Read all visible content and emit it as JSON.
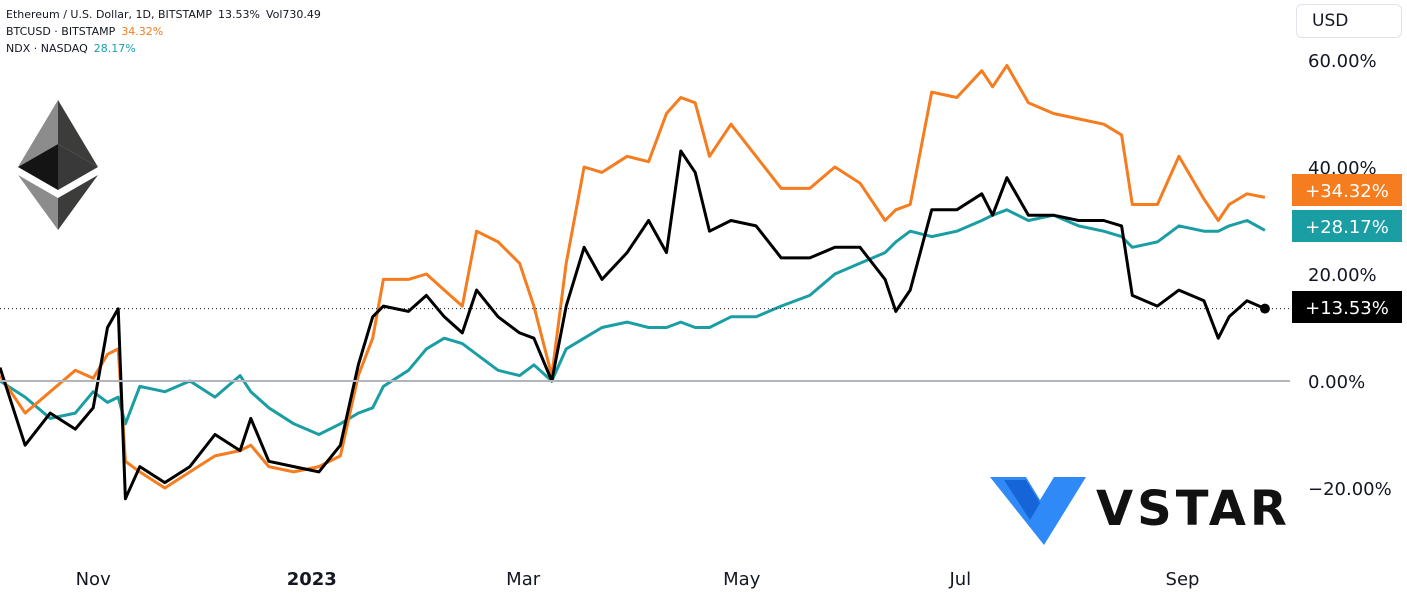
{
  "legend": {
    "eth": {
      "label": "Ethereum / U.S. Dollar, 1D, BITSTAMP",
      "value": "13.53%",
      "volume": "Vol730.49"
    },
    "btc": {
      "label": "BTCUSD · BITSTAMP",
      "value": "34.32%"
    },
    "ndx": {
      "label": "NDX · NASDAQ",
      "value": "28.17%"
    }
  },
  "currency_button": "USD",
  "brand": {
    "name": "VSTAR"
  },
  "colors": {
    "eth": "#000000",
    "btc": "#f57c1f",
    "ndx": "#1a9ea4",
    "zero_line": "#b2b5be"
  },
  "chart_data": {
    "type": "line",
    "xlabel": "",
    "ylabel": "",
    "ylim": [
      -22,
      62
    ],
    "yticks": [
      {
        "value": 60,
        "label": "60.00%"
      },
      {
        "value": 40,
        "label": "40.00%"
      },
      {
        "value": 20,
        "label": "20.00%"
      },
      {
        "value": 0,
        "label": "0.00%"
      },
      {
        "value": -20,
        "label": "−20.00%"
      }
    ],
    "xticks": [
      {
        "date": "2022-11-01",
        "label": "Nov",
        "bold": false
      },
      {
        "date": "2023-01-01",
        "label": "2023",
        "bold": true
      },
      {
        "date": "2023-03-01",
        "label": "Mar",
        "bold": false
      },
      {
        "date": "2023-05-01",
        "label": "May",
        "bold": false
      },
      {
        "date": "2023-07-01",
        "label": "Jul",
        "bold": false
      },
      {
        "date": "2023-09-01",
        "label": "Sep",
        "bold": false
      }
    ],
    "x_range": [
      "2022-10-06",
      "2023-10-01"
    ],
    "last_value_labels": [
      {
        "series": "BTCUSD",
        "label": "+34.32%"
      },
      {
        "series": "NDX",
        "label": "+28.17%"
      },
      {
        "series": "ETHUSD",
        "label": "+13.53%"
      }
    ],
    "series": [
      {
        "name": "ETHUSD",
        "color": "#000000",
        "points": [
          [
            "2022-10-06",
            2.5
          ],
          [
            "2022-10-13",
            -12
          ],
          [
            "2022-10-20",
            -6
          ],
          [
            "2022-10-27",
            -9
          ],
          [
            "2022-11-01",
            -5
          ],
          [
            "2022-11-05",
            10
          ],
          [
            "2022-11-08",
            13.5
          ],
          [
            "2022-11-10",
            -22
          ],
          [
            "2022-11-14",
            -16
          ],
          [
            "2022-11-21",
            -19
          ],
          [
            "2022-11-28",
            -16
          ],
          [
            "2022-12-05",
            -10
          ],
          [
            "2022-12-12",
            -13
          ],
          [
            "2022-12-15",
            -7
          ],
          [
            "2022-12-20",
            -15
          ],
          [
            "2022-12-27",
            -16
          ],
          [
            "2023-01-03",
            -17
          ],
          [
            "2023-01-09",
            -12
          ],
          [
            "2023-01-14",
            3
          ],
          [
            "2023-01-18",
            12
          ],
          [
            "2023-01-21",
            14
          ],
          [
            "2023-01-28",
            13
          ],
          [
            "2023-02-02",
            16
          ],
          [
            "2023-02-07",
            12
          ],
          [
            "2023-02-12",
            9
          ],
          [
            "2023-02-16",
            17
          ],
          [
            "2023-02-22",
            12
          ],
          [
            "2023-02-28",
            9
          ],
          [
            "2023-03-04",
            8
          ],
          [
            "2023-03-09",
            0
          ],
          [
            "2023-03-13",
            14
          ],
          [
            "2023-03-18",
            25
          ],
          [
            "2023-03-23",
            19
          ],
          [
            "2023-03-30",
            24
          ],
          [
            "2023-04-05",
            30
          ],
          [
            "2023-04-10",
            24
          ],
          [
            "2023-04-14",
            43
          ],
          [
            "2023-04-18",
            39
          ],
          [
            "2023-04-22",
            28
          ],
          [
            "2023-04-28",
            30
          ],
          [
            "2023-05-05",
            29
          ],
          [
            "2023-05-12",
            23
          ],
          [
            "2023-05-20",
            23
          ],
          [
            "2023-05-27",
            25
          ],
          [
            "2023-06-03",
            25
          ],
          [
            "2023-06-10",
            19
          ],
          [
            "2023-06-13",
            13
          ],
          [
            "2023-06-17",
            17
          ],
          [
            "2023-06-23",
            32
          ],
          [
            "2023-06-30",
            32
          ],
          [
            "2023-07-07",
            35
          ],
          [
            "2023-07-10",
            31
          ],
          [
            "2023-07-14",
            38
          ],
          [
            "2023-07-20",
            31
          ],
          [
            "2023-07-27",
            31
          ],
          [
            "2023-08-03",
            30
          ],
          [
            "2023-08-10",
            30
          ],
          [
            "2023-08-15",
            29
          ],
          [
            "2023-08-18",
            16
          ],
          [
            "2023-08-25",
            14
          ],
          [
            "2023-08-31",
            17
          ],
          [
            "2023-09-07",
            15
          ],
          [
            "2023-09-11",
            8
          ],
          [
            "2023-09-14",
            12
          ],
          [
            "2023-09-19",
            15
          ],
          [
            "2023-09-24",
            13.53
          ]
        ]
      },
      {
        "name": "BTCUSD",
        "color": "#f57c1f",
        "points": [
          [
            "2022-10-06",
            1
          ],
          [
            "2022-10-13",
            -6
          ],
          [
            "2022-10-20",
            -2
          ],
          [
            "2022-10-27",
            2
          ],
          [
            "2022-11-01",
            0.5
          ],
          [
            "2022-11-05",
            5
          ],
          [
            "2022-11-08",
            6
          ],
          [
            "2022-11-10",
            -15
          ],
          [
            "2022-11-14",
            -17
          ],
          [
            "2022-11-21",
            -20
          ],
          [
            "2022-11-28",
            -17
          ],
          [
            "2022-12-05",
            -14
          ],
          [
            "2022-12-12",
            -13
          ],
          [
            "2022-12-15",
            -12
          ],
          [
            "2022-12-20",
            -16
          ],
          [
            "2022-12-27",
            -17
          ],
          [
            "2023-01-03",
            -16
          ],
          [
            "2023-01-09",
            -14
          ],
          [
            "2023-01-14",
            1
          ],
          [
            "2023-01-18",
            8
          ],
          [
            "2023-01-21",
            19
          ],
          [
            "2023-01-28",
            19
          ],
          [
            "2023-02-02",
            20
          ],
          [
            "2023-02-07",
            17
          ],
          [
            "2023-02-12",
            14
          ],
          [
            "2023-02-16",
            28
          ],
          [
            "2023-02-22",
            26
          ],
          [
            "2023-02-28",
            22
          ],
          [
            "2023-03-04",
            14
          ],
          [
            "2023-03-09",
            1
          ],
          [
            "2023-03-13",
            22
          ],
          [
            "2023-03-18",
            40
          ],
          [
            "2023-03-23",
            39
          ],
          [
            "2023-03-30",
            42
          ],
          [
            "2023-04-05",
            41
          ],
          [
            "2023-04-10",
            50
          ],
          [
            "2023-04-14",
            53
          ],
          [
            "2023-04-18",
            52
          ],
          [
            "2023-04-22",
            42
          ],
          [
            "2023-04-28",
            48
          ],
          [
            "2023-05-05",
            42
          ],
          [
            "2023-05-12",
            36
          ],
          [
            "2023-05-20",
            36
          ],
          [
            "2023-05-27",
            40
          ],
          [
            "2023-06-03",
            37
          ],
          [
            "2023-06-10",
            30
          ],
          [
            "2023-06-13",
            32
          ],
          [
            "2023-06-17",
            33
          ],
          [
            "2023-06-23",
            54
          ],
          [
            "2023-06-30",
            53
          ],
          [
            "2023-07-07",
            58
          ],
          [
            "2023-07-10",
            55
          ],
          [
            "2023-07-14",
            59
          ],
          [
            "2023-07-20",
            52
          ],
          [
            "2023-07-27",
            50
          ],
          [
            "2023-08-03",
            49
          ],
          [
            "2023-08-10",
            48
          ],
          [
            "2023-08-15",
            46
          ],
          [
            "2023-08-18",
            33
          ],
          [
            "2023-08-25",
            33
          ],
          [
            "2023-08-31",
            42
          ],
          [
            "2023-09-07",
            34
          ],
          [
            "2023-09-11",
            30
          ],
          [
            "2023-09-14",
            33
          ],
          [
            "2023-09-19",
            35
          ],
          [
            "2023-09-24",
            34.32
          ]
        ]
      },
      {
        "name": "NDX",
        "color": "#1a9ea4",
        "points": [
          [
            "2022-10-06",
            0
          ],
          [
            "2022-10-13",
            -3
          ],
          [
            "2022-10-20",
            -7
          ],
          [
            "2022-10-27",
            -6
          ],
          [
            "2022-11-01",
            -2
          ],
          [
            "2022-11-05",
            -4
          ],
          [
            "2022-11-08",
            -3
          ],
          [
            "2022-11-10",
            -8
          ],
          [
            "2022-11-14",
            -1
          ],
          [
            "2022-11-21",
            -2
          ],
          [
            "2022-11-28",
            0
          ],
          [
            "2022-12-05",
            -3
          ],
          [
            "2022-12-12",
            1
          ],
          [
            "2022-12-15",
            -2
          ],
          [
            "2022-12-20",
            -5
          ],
          [
            "2022-12-27",
            -8
          ],
          [
            "2023-01-03",
            -10
          ],
          [
            "2023-01-09",
            -8
          ],
          [
            "2023-01-14",
            -6
          ],
          [
            "2023-01-18",
            -5
          ],
          [
            "2023-01-21",
            -1
          ],
          [
            "2023-01-28",
            2
          ],
          [
            "2023-02-02",
            6
          ],
          [
            "2023-02-07",
            8
          ],
          [
            "2023-02-12",
            7
          ],
          [
            "2023-02-16",
            5
          ],
          [
            "2023-02-22",
            2
          ],
          [
            "2023-02-28",
            1
          ],
          [
            "2023-03-04",
            3
          ],
          [
            "2023-03-09",
            0
          ],
          [
            "2023-03-13",
            6
          ],
          [
            "2023-03-18",
            8
          ],
          [
            "2023-03-23",
            10
          ],
          [
            "2023-03-30",
            11
          ],
          [
            "2023-04-05",
            10
          ],
          [
            "2023-04-10",
            10
          ],
          [
            "2023-04-14",
            11
          ],
          [
            "2023-04-18",
            10
          ],
          [
            "2023-04-22",
            10
          ],
          [
            "2023-04-28",
            12
          ],
          [
            "2023-05-05",
            12
          ],
          [
            "2023-05-12",
            14
          ],
          [
            "2023-05-20",
            16
          ],
          [
            "2023-05-27",
            20
          ],
          [
            "2023-06-03",
            22
          ],
          [
            "2023-06-10",
            24
          ],
          [
            "2023-06-13",
            26
          ],
          [
            "2023-06-17",
            28
          ],
          [
            "2023-06-23",
            27
          ],
          [
            "2023-06-30",
            28
          ],
          [
            "2023-07-07",
            30
          ],
          [
            "2023-07-10",
            31
          ],
          [
            "2023-07-14",
            32
          ],
          [
            "2023-07-20",
            30
          ],
          [
            "2023-07-27",
            31
          ],
          [
            "2023-08-03",
            29
          ],
          [
            "2023-08-10",
            28
          ],
          [
            "2023-08-15",
            27
          ],
          [
            "2023-08-18",
            25
          ],
          [
            "2023-08-25",
            26
          ],
          [
            "2023-08-31",
            29
          ],
          [
            "2023-09-07",
            28
          ],
          [
            "2023-09-11",
            28
          ],
          [
            "2023-09-14",
            29
          ],
          [
            "2023-09-19",
            30
          ],
          [
            "2023-09-24",
            28.17
          ]
        ]
      }
    ]
  }
}
